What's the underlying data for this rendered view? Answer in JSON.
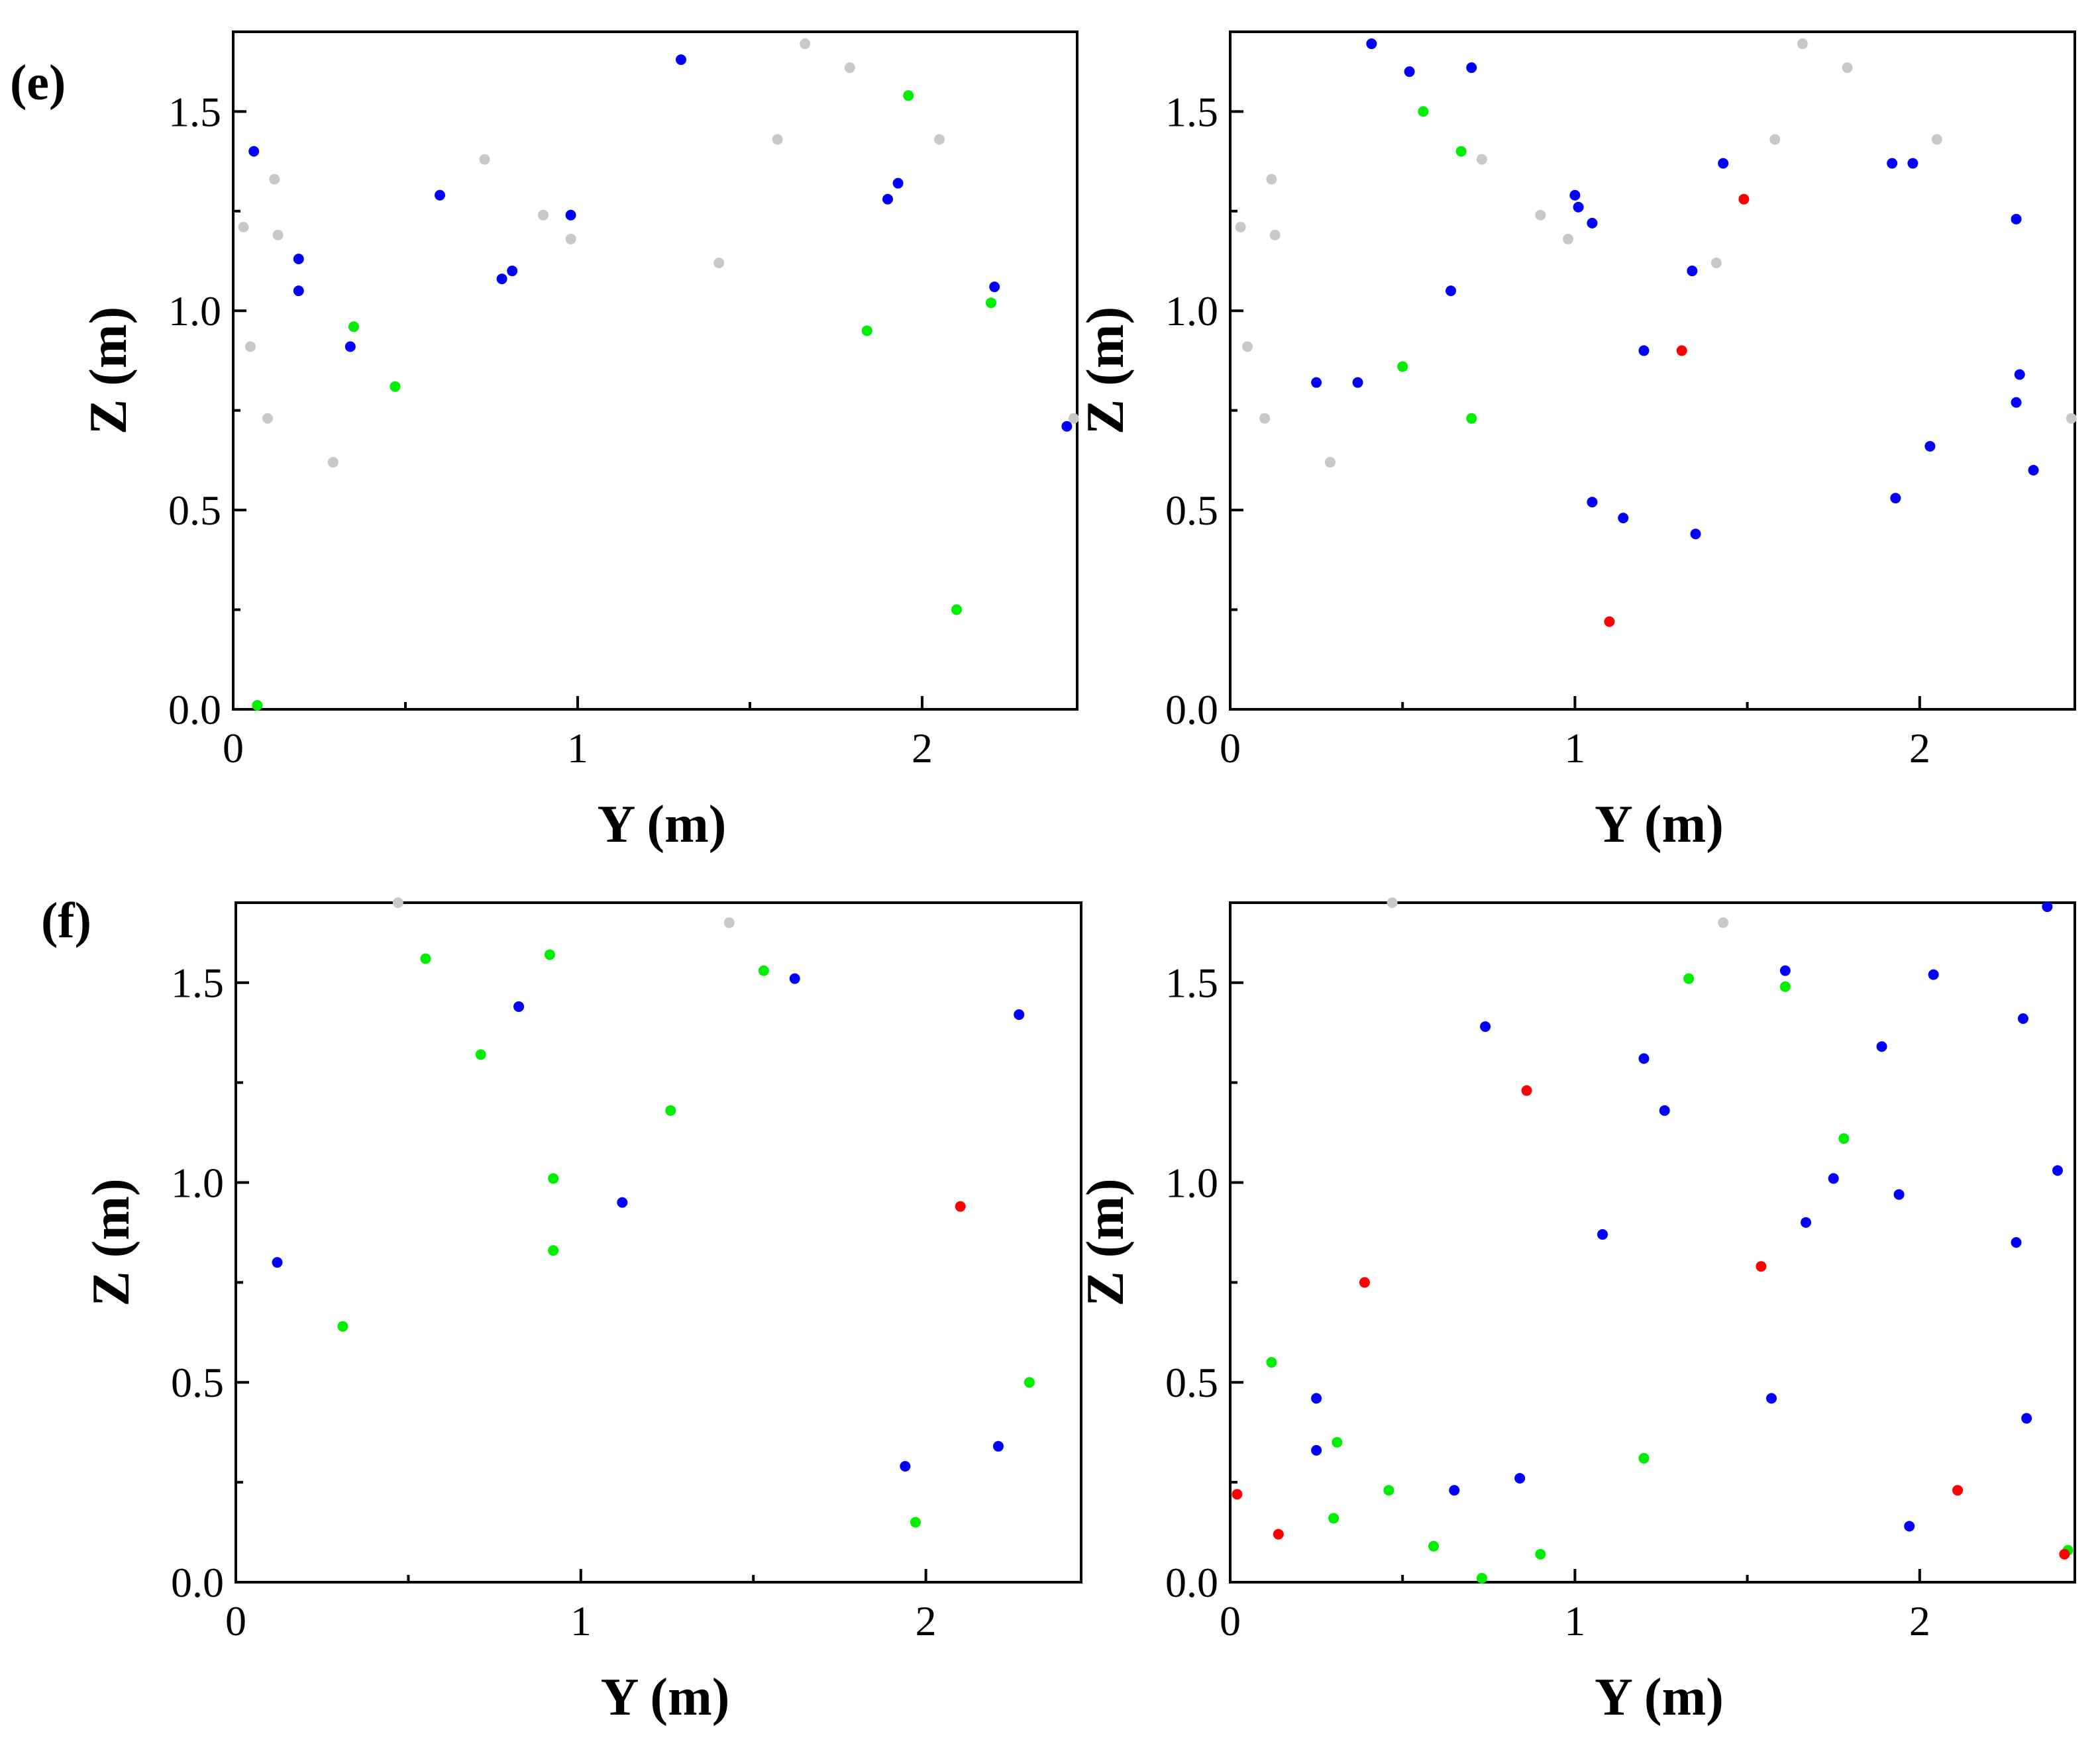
{
  "labels": {
    "e": "(e)",
    "f": "(f)"
  },
  "colors": {
    "blue": "#0000ff",
    "green": "#00ee00",
    "gray": "#c8c8c8",
    "red": "#ff0000"
  },
  "chart_data": [
    {
      "type": "scatter",
      "xlabel": "Y (m)",
      "ylabel": "Z (m)",
      "xlim": [
        0,
        2.45
      ],
      "ylim": [
        0,
        1.7
      ],
      "xticks": [
        "0",
        "1",
        "2"
      ],
      "yticks": [
        "0.0",
        "0.5",
        "1.0",
        "1.5"
      ],
      "grid": false,
      "series": [
        {
          "color": "gray",
          "points": [
            [
              0.03,
              1.21
            ],
            [
              0.05,
              0.91
            ],
            [
              0.1,
              0.73
            ],
            [
              0.12,
              1.33
            ],
            [
              0.13,
              1.19
            ],
            [
              0.29,
              0.62
            ],
            [
              0.73,
              1.38
            ],
            [
              0.9,
              1.24
            ],
            [
              0.98,
              1.18
            ],
            [
              1.41,
              1.12
            ],
            [
              1.58,
              1.43
            ],
            [
              1.66,
              1.67
            ],
            [
              1.79,
              1.61
            ],
            [
              2.05,
              1.43
            ],
            [
              2.44,
              0.73
            ]
          ]
        },
        {
          "color": "blue",
          "points": [
            [
              0.06,
              1.4
            ],
            [
              0.19,
              1.13
            ],
            [
              0.19,
              1.05
            ],
            [
              0.34,
              0.91
            ],
            [
              0.6,
              1.29
            ],
            [
              0.78,
              1.08
            ],
            [
              0.81,
              1.1
            ],
            [
              0.98,
              1.24
            ],
            [
              1.3,
              1.63
            ],
            [
              1.9,
              1.28
            ],
            [
              1.93,
              1.32
            ],
            [
              2.21,
              1.06
            ],
            [
              2.42,
              0.71
            ]
          ]
        },
        {
          "color": "green",
          "points": [
            [
              0.07,
              0.01
            ],
            [
              0.35,
              0.96
            ],
            [
              0.47,
              0.81
            ],
            [
              1.84,
              0.95
            ],
            [
              1.96,
              1.54
            ],
            [
              2.1,
              0.25
            ],
            [
              2.2,
              1.02
            ]
          ]
        }
      ]
    },
    {
      "type": "scatter",
      "xlabel": "Y (m)",
      "ylabel": "Z (m)",
      "xlim": [
        0,
        2.45
      ],
      "ylim": [
        0,
        1.7
      ],
      "xticks": [
        "0",
        "1",
        "2"
      ],
      "yticks": [
        "0.0",
        "0.5",
        "1.0",
        "1.5"
      ],
      "grid": false,
      "series": [
        {
          "color": "gray",
          "points": [
            [
              0.03,
              1.21
            ],
            [
              0.05,
              0.91
            ],
            [
              0.1,
              0.73
            ],
            [
              0.12,
              1.33
            ],
            [
              0.13,
              1.19
            ],
            [
              0.29,
              0.62
            ],
            [
              0.73,
              1.38
            ],
            [
              0.9,
              1.24
            ],
            [
              0.98,
              1.18
            ],
            [
              1.41,
              1.12
            ],
            [
              1.58,
              1.43
            ],
            [
              1.66,
              1.67
            ],
            [
              1.79,
              1.61
            ],
            [
              2.05,
              1.43
            ],
            [
              2.44,
              0.73
            ]
          ]
        },
        {
          "color": "blue",
          "points": [
            [
              0.25,
              0.82
            ],
            [
              0.37,
              0.82
            ],
            [
              0.41,
              1.67
            ],
            [
              0.52,
              1.6
            ],
            [
              0.64,
              1.05
            ],
            [
              0.7,
              1.61
            ],
            [
              1.0,
              1.29
            ],
            [
              1.01,
              1.26
            ],
            [
              1.05,
              1.22
            ],
            [
              1.05,
              0.52
            ],
            [
              1.14,
              0.48
            ],
            [
              1.2,
              0.9
            ],
            [
              1.34,
              1.1
            ],
            [
              1.35,
              0.44
            ],
            [
              1.43,
              1.37
            ],
            [
              1.92,
              1.37
            ],
            [
              1.93,
              0.53
            ],
            [
              1.98,
              1.37
            ],
            [
              2.03,
              0.66
            ],
            [
              2.28,
              1.23
            ],
            [
              2.28,
              0.77
            ],
            [
              2.29,
              0.84
            ],
            [
              2.33,
              0.6
            ]
          ]
        },
        {
          "color": "green",
          "points": [
            [
              0.5,
              0.86
            ],
            [
              0.56,
              1.5
            ],
            [
              0.67,
              1.4
            ],
            [
              0.7,
              0.73
            ]
          ]
        },
        {
          "color": "red",
          "points": [
            [
              1.1,
              0.22
            ],
            [
              1.31,
              0.9
            ],
            [
              1.49,
              1.28
            ]
          ]
        }
      ]
    },
    {
      "type": "scatter",
      "xlabel": "Y (m)",
      "ylabel": "Z (m)",
      "xlim": [
        0,
        2.45
      ],
      "ylim": [
        0,
        1.7
      ],
      "xticks": [
        "0",
        "1",
        "2"
      ],
      "yticks": [
        "0.0",
        "0.5",
        "1.0",
        "1.5"
      ],
      "grid": false,
      "series": [
        {
          "color": "gray",
          "points": [
            [
              0.47,
              1.7
            ],
            [
              1.43,
              1.65
            ]
          ]
        },
        {
          "color": "blue",
          "points": [
            [
              0.12,
              0.8
            ],
            [
              0.82,
              1.44
            ],
            [
              1.12,
              0.95
            ],
            [
              1.62,
              1.51
            ],
            [
              1.94,
              0.29
            ],
            [
              2.21,
              0.34
            ],
            [
              2.27,
              1.42
            ]
          ]
        },
        {
          "color": "green",
          "points": [
            [
              0.31,
              0.64
            ],
            [
              0.55,
              1.56
            ],
            [
              0.71,
              1.32
            ],
            [
              0.91,
              1.57
            ],
            [
              0.92,
              1.01
            ],
            [
              0.92,
              0.83
            ],
            [
              1.26,
              1.18
            ],
            [
              1.53,
              1.53
            ],
            [
              1.97,
              0.15
            ],
            [
              2.3,
              0.5
            ]
          ]
        },
        {
          "color": "red",
          "points": [
            [
              2.1,
              0.94
            ]
          ]
        }
      ]
    },
    {
      "type": "scatter",
      "xlabel": "Y (m)",
      "ylabel": "Z (m)",
      "xlim": [
        0,
        2.45
      ],
      "ylim": [
        0,
        1.7
      ],
      "xticks": [
        "0",
        "1",
        "2"
      ],
      "yticks": [
        "0.0",
        "0.5",
        "1.0",
        "1.5"
      ],
      "grid": false,
      "series": [
        {
          "color": "gray",
          "points": [
            [
              0.47,
              1.7
            ],
            [
              1.43,
              1.65
            ]
          ]
        },
        {
          "color": "blue",
          "points": [
            [
              0.25,
              0.46
            ],
            [
              0.25,
              0.33
            ],
            [
              0.65,
              0.23
            ],
            [
              0.74,
              1.39
            ],
            [
              0.84,
              0.26
            ],
            [
              1.08,
              0.87
            ],
            [
              1.2,
              1.31
            ],
            [
              1.26,
              1.18
            ],
            [
              1.57,
              0.46
            ],
            [
              1.61,
              1.53
            ],
            [
              1.67,
              0.9
            ],
            [
              1.75,
              1.01
            ],
            [
              1.89,
              1.34
            ],
            [
              1.94,
              0.97
            ],
            [
              1.97,
              0.14
            ],
            [
              2.04,
              1.52
            ],
            [
              2.28,
              0.85
            ],
            [
              2.3,
              1.41
            ],
            [
              2.31,
              0.41
            ],
            [
              2.37,
              1.69
            ],
            [
              2.4,
              1.03
            ]
          ]
        },
        {
          "color": "green",
          "points": [
            [
              0.12,
              0.55
            ],
            [
              0.3,
              0.16
            ],
            [
              0.31,
              0.35
            ],
            [
              0.46,
              0.23
            ],
            [
              0.59,
              0.09
            ],
            [
              0.73,
              0.01
            ],
            [
              0.9,
              0.07
            ],
            [
              1.2,
              0.31
            ],
            [
              1.33,
              1.51
            ],
            [
              1.61,
              1.49
            ],
            [
              1.78,
              1.11
            ],
            [
              2.43,
              0.08
            ]
          ]
        },
        {
          "color": "red",
          "points": [
            [
              0.02,
              0.22
            ],
            [
              0.14,
              0.12
            ],
            [
              0.39,
              0.75
            ],
            [
              0.86,
              1.23
            ],
            [
              1.54,
              0.79
            ],
            [
              2.11,
              0.23
            ],
            [
              2.42,
              0.07
            ]
          ]
        }
      ]
    }
  ]
}
